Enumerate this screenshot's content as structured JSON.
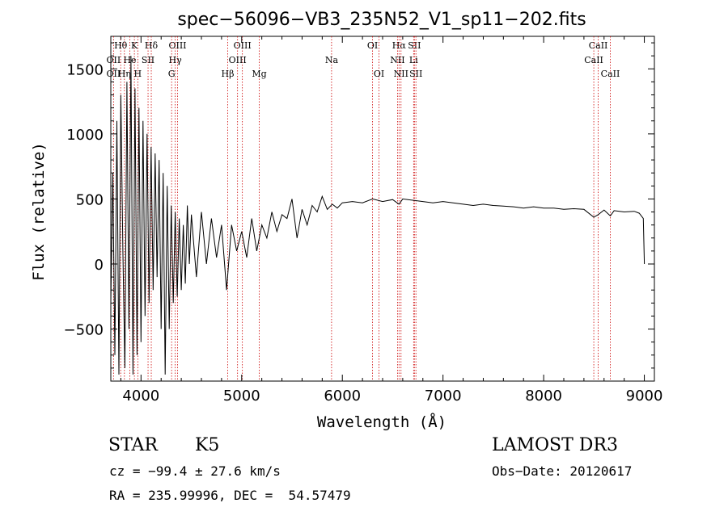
{
  "chart_data": {
    "type": "line",
    "title": "spec−56096−VB3_235N52_V1_sp11−202.fits",
    "xlabel": "Wavelength (Å)",
    "ylabel": "Flux (relative)",
    "xlim": [
      3700,
      9100
    ],
    "ylim": [
      -900,
      1750
    ],
    "xticks": [
      4000,
      5000,
      6000,
      7000,
      8000,
      9000
    ],
    "xtick_labels": [
      "4000",
      "5000",
      "6000",
      "7000",
      "8000",
      "9000"
    ],
    "yticks": [
      -500,
      0,
      500,
      1000,
      1500
    ],
    "ytick_labels": [
      "−500",
      "0",
      "500",
      "1000",
      "1500"
    ],
    "grid": false,
    "series": [
      {
        "name": "flux",
        "x": [
          3700,
          3720,
          3740,
          3760,
          3780,
          3800,
          3820,
          3840,
          3860,
          3880,
          3900,
          3920,
          3940,
          3960,
          3980,
          4000,
          4020,
          4040,
          4060,
          4080,
          4100,
          4120,
          4140,
          4160,
          4180,
          4200,
          4220,
          4240,
          4260,
          4280,
          4300,
          4320,
          4340,
          4360,
          4380,
          4400,
          4420,
          4440,
          4460,
          4480,
          4500,
          4550,
          4600,
          4650,
          4700,
          4750,
          4800,
          4850,
          4900,
          4950,
          5000,
          5050,
          5100,
          5150,
          5200,
          5250,
          5300,
          5350,
          5400,
          5450,
          5500,
          5550,
          5600,
          5650,
          5700,
          5750,
          5800,
          5850,
          5900,
          5950,
          6000,
          6100,
          6200,
          6300,
          6400,
          6500,
          6563,
          6600,
          6700,
          6800,
          6900,
          7000,
          7100,
          7200,
          7300,
          7400,
          7500,
          7600,
          7700,
          7800,
          7900,
          8000,
          8100,
          8200,
          8300,
          8400,
          8498,
          8542,
          8600,
          8662,
          8700,
          8800,
          8900,
          8950,
          8990,
          9000
        ],
        "y": [
          -300,
          700,
          -700,
          1100,
          -850,
          1300,
          100,
          -800,
          1400,
          -500,
          1600,
          -850,
          1350,
          -700,
          1200,
          -600,
          1100,
          -400,
          1000,
          -300,
          900,
          -200,
          850,
          -100,
          800,
          -500,
          700,
          -850,
          600,
          -500,
          450,
          -300,
          400,
          -250,
          350,
          -200,
          300,
          -150,
          450,
          0,
          380,
          -100,
          400,
          0,
          350,
          50,
          300,
          -200,
          300,
          100,
          250,
          50,
          350,
          100,
          300,
          200,
          400,
          250,
          380,
          350,
          500,
          200,
          420,
          300,
          450,
          400,
          520,
          420,
          460,
          430,
          470,
          480,
          470,
          500,
          480,
          495,
          460,
          500,
          490,
          480,
          470,
          480,
          470,
          460,
          450,
          460,
          450,
          445,
          440,
          430,
          440,
          430,
          430,
          420,
          425,
          420,
          360,
          380,
          415,
          370,
          410,
          400,
          405,
          390,
          350,
          0
        ]
      }
    ],
    "line_marks": {
      "top_row": [
        {
          "label": "Hθ",
          "x": 3798
        },
        {
          "label": "K",
          "x": 3934
        },
        {
          "label": "Hδ",
          "x": 4102
        },
        {
          "label": "OIII",
          "x": 4363
        },
        {
          "label": "OIII",
          "x": 5007
        },
        {
          "label": "OI",
          "x": 6300
        },
        {
          "label": "Hα",
          "x": 6563
        },
        {
          "label": "SII",
          "x": 6716
        },
        {
          "label": "CaII",
          "x": 8542
        }
      ],
      "middle_row": [
        {
          "label": "OII",
          "x": 3727
        },
        {
          "label": "He",
          "x": 3889
        },
        {
          "label": "SII",
          "x": 4070
        },
        {
          "label": "Hγ",
          "x": 4340
        },
        {
          "label": "OIII",
          "x": 4959
        },
        {
          "label": "Na",
          "x": 5893
        },
        {
          "label": "NII",
          "x": 6548
        },
        {
          "label": "Li",
          "x": 6708
        },
        {
          "label": "CaII",
          "x": 8498
        }
      ],
      "bottom_row": [
        {
          "label": "OII",
          "x": 3727
        },
        {
          "label": "Hη",
          "x": 3835
        },
        {
          "label": "H",
          "x": 3968
        },
        {
          "label": "G",
          "x": 4304
        },
        {
          "label": "Hβ",
          "x": 4861
        },
        {
          "label": "Mg",
          "x": 5175
        },
        {
          "label": "OI",
          "x": 6364
        },
        {
          "label": "NII",
          "x": 6583
        },
        {
          "label": "SII",
          "x": 6731
        },
        {
          "label": "CaII",
          "x": 8662
        }
      ]
    },
    "line_color": "#cc0000"
  },
  "info": {
    "class_label": "STAR",
    "subclass": "K5",
    "survey": "LAMOST DR3",
    "redshift": "cz = −99.4 ± 27.6 km/s",
    "obs_date": "Obs−Date: 20120617",
    "coords": "RA = 235.99996, DEC =  54.57479"
  }
}
